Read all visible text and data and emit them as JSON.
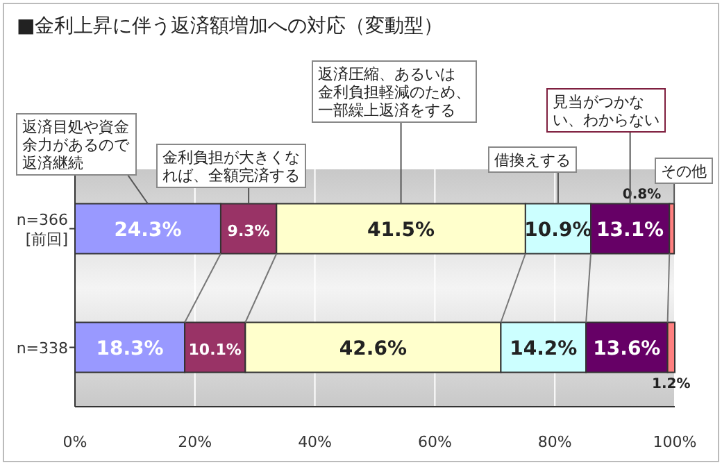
{
  "chart_data": {
    "type": "bar",
    "orientation": "horizontal",
    "stacked": true,
    "grid": "x",
    "title": "■金利上昇に伴う返済額増加への対応（変動型）",
    "categories": [
      "n=366\n[前回]",
      "n=338"
    ],
    "xlim": [
      0,
      100
    ],
    "xticks": [
      {
        "value": 0,
        "label": "0%"
      },
      {
        "value": 20,
        "label": "20%"
      },
      {
        "value": 40,
        "label": "40%"
      },
      {
        "value": 60,
        "label": "60%"
      },
      {
        "value": 80,
        "label": "80%"
      },
      {
        "value": 100,
        "label": "100%"
      }
    ],
    "series": [
      {
        "name": "返済目処や資金余力があるので返済継続",
        "color": "#9999ff",
        "values": [
          24.3,
          18.3
        ],
        "value_labels": [
          "24.3%",
          "18.3%"
        ]
      },
      {
        "name": "金利負担が大きくなれば、全額完済する",
        "color": "#993366",
        "values": [
          9.3,
          10.1
        ],
        "value_labels": [
          "9.3%",
          "10.1%"
        ]
      },
      {
        "name": "返済圧縮、あるいは金利負担軽減のため、一部繰上返済をする",
        "color": "#ffffcc",
        "values": [
          41.5,
          42.6
        ],
        "value_labels": [
          "41.5%",
          "42.6%"
        ]
      },
      {
        "name": "借換えする",
        "color": "#ccffff",
        "values": [
          10.9,
          14.2
        ],
        "value_labels": [
          "10.9%",
          "14.2%"
        ]
      },
      {
        "name": "見当がつかない、わからない",
        "color": "#660066",
        "values": [
          13.1,
          13.6
        ],
        "value_labels": [
          "13.1%",
          "13.6%"
        ]
      },
      {
        "name": "その他",
        "color": "#ff8080",
        "values": [
          0.8,
          1.2
        ],
        "value_labels": [
          "0.8%",
          "1.2%"
        ]
      }
    ]
  }
}
